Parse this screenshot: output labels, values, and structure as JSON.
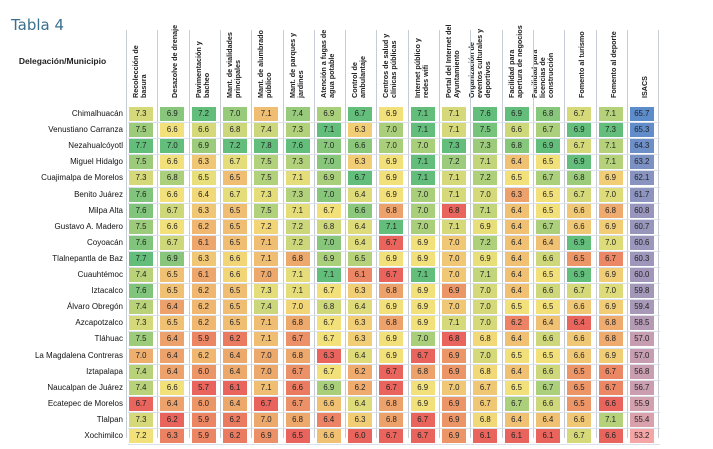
{
  "title": "Tabla 4",
  "header_label": "Delegación/Municipio",
  "columns": [
    "Recolección de basura",
    "Desazolve de drenaje",
    "Pavimentación y bacheo",
    "Mant. de vialidades principales",
    "Mant. de alumbrado público",
    "Mant. de parques y jardines",
    "Atención a fugas de agua potable",
    "Control de ambulantaje",
    "Centros de salud y clínicas públicas",
    "Internet público y redes wifi",
    "Portal del Internet del Ayuntamiento",
    "Organización de eventos culturales y deportivos",
    "Facilidad para apertura de negocios",
    "Facilidad para licencias de construcción",
    "Fomento al turismo",
    "Fomento al deporte",
    "ISACS"
  ],
  "rows": [
    {
      "name": "Chimalhuacán",
      "values": [
        "7.3",
        "6.9",
        "7.2",
        "7.0",
        "7.1",
        "7.4",
        "6.9",
        "6.7",
        "6.9",
        "7.1",
        "7.1",
        "7.6",
        "6.9",
        "6.8",
        "6.7",
        "7.1",
        "65.7"
      ]
    },
    {
      "name": "Venustiano Carranza",
      "values": [
        "7.5",
        "6.6",
        "6.6",
        "6.8",
        "7.4",
        "7.3",
        "7.1",
        "6.3",
        "7.0",
        "7.1",
        "7.1",
        "7.5",
        "6.6",
        "6.7",
        "6.9",
        "7.3",
        "65.3"
      ]
    },
    {
      "name": "Nezahualcóyotl",
      "values": [
        "7.7",
        "7.0",
        "6.9",
        "7.2",
        "7.8",
        "7.6",
        "7.0",
        "6.6",
        "7.0",
        "7.0",
        "7.3",
        "7.3",
        "6.8",
        "6.9",
        "6.7",
        "7.1",
        "64.3"
      ]
    },
    {
      "name": "Miguel Hidalgo",
      "values": [
        "7.5",
        "6.6",
        "6.3",
        "6.7",
        "7.5",
        "7.3",
        "7.0",
        "6.3",
        "6.9",
        "7.1",
        "7.2",
        "7.1",
        "6.4",
        "6.5",
        "6.9",
        "7.1",
        "63.2"
      ]
    },
    {
      "name": "Cuajimalpa de Morelos",
      "values": [
        "7.3",
        "6.8",
        "6.5",
        "6.5",
        "7.5",
        "7.1",
        "6.9",
        "6.7",
        "6.9",
        "7.1",
        "7.1",
        "7.2",
        "6.5",
        "6.7",
        "6.8",
        "6.9",
        "62.1"
      ]
    },
    {
      "name": "Benito Juárez",
      "values": [
        "7.6",
        "6.6",
        "6.4",
        "6.7",
        "7.3",
        "7.3",
        "7.0",
        "6.4",
        "6.9",
        "7.0",
        "7.1",
        "7.0",
        "6.3",
        "6.5",
        "6.7",
        "7.0",
        "61.7"
      ]
    },
    {
      "name": "Milpa Alta",
      "values": [
        "7.6",
        "6.7",
        "6.3",
        "6.5",
        "7.5",
        "7.1",
        "6.7",
        "6.6",
        "6.8",
        "7.0",
        "6.8",
        "7.1",
        "6.4",
        "6.5",
        "6.6",
        "6.8",
        "60.8"
      ]
    },
    {
      "name": "Gustavo A. Madero",
      "values": [
        "7.5",
        "6.6",
        "6.2",
        "6.5",
        "7.2",
        "7.2",
        "6.8",
        "6.4",
        "7.1",
        "7.0",
        "7.1",
        "6.9",
        "6.4",
        "6.7",
        "6.6",
        "6.9",
        "60.7"
      ]
    },
    {
      "name": "Coyoacán",
      "values": [
        "7.6",
        "6.7",
        "6.1",
        "6.5",
        "7.1",
        "7.2",
        "7.0",
        "6.4",
        "6.7",
        "6.9",
        "7.0",
        "7.2",
        "6.4",
        "6.4",
        "6.9",
        "7.0",
        "60.6"
      ]
    },
    {
      "name": "Tlalnepantla de Baz",
      "values": [
        "7.7",
        "6.9",
        "6.3",
        "6.6",
        "7.1",
        "6.8",
        "6.9",
        "6.5",
        "6.9",
        "6.9",
        "7.0",
        "6.9",
        "6.4",
        "6.6",
        "6.5",
        "6.7",
        "60.3"
      ]
    },
    {
      "name": "Cuauhtémoc",
      "values": [
        "7.4",
        "6.5",
        "6.1",
        "6.6",
        "7.0",
        "7.1",
        "7.1",
        "6.1",
        "6.7",
        "7.1",
        "7.0",
        "7.1",
        "6.4",
        "6.5",
        "6.9",
        "6.9",
        "60.0"
      ]
    },
    {
      "name": "Iztacalco",
      "values": [
        "7.6",
        "6.5",
        "6.2",
        "6.5",
        "7.3",
        "7.1",
        "6.7",
        "6.3",
        "6.8",
        "6.9",
        "6.9",
        "7.0",
        "6.4",
        "6.6",
        "6.7",
        "7.0",
        "59.8"
      ]
    },
    {
      "name": "Álvaro Obregón",
      "values": [
        "7.4",
        "6.4",
        "6.2",
        "6.5",
        "7.4",
        "7.0",
        "6.8",
        "6.4",
        "6.9",
        "6.9",
        "7.0",
        "7.0",
        "6.5",
        "6.5",
        "6.6",
        "6.9",
        "59.4"
      ]
    },
    {
      "name": "Azcapotzalco",
      "values": [
        "7.3",
        "6.5",
        "6.2",
        "6.5",
        "7.1",
        "6.8",
        "6.7",
        "6.3",
        "6.8",
        "6.9",
        "7.1",
        "7.0",
        "6.2",
        "6.4",
        "6.4",
        "6.8",
        "58.5"
      ]
    },
    {
      "name": "Tláhuac",
      "values": [
        "7.5",
        "6.4",
        "5.9",
        "6.2",
        "7.1",
        "6.7",
        "6.7",
        "6.3",
        "6.9",
        "7.0",
        "6.8",
        "6.8",
        "6.4",
        "6.6",
        "6.6",
        "6.8",
        "57.0"
      ]
    },
    {
      "name": "La Magdalena Contreras",
      "values": [
        "7.0",
        "6.4",
        "6.2",
        "6.4",
        "7.0",
        "6.8",
        "6.3",
        "6.4",
        "6.9",
        "6.7",
        "6.9",
        "7.0",
        "6.5",
        "6.5",
        "6.6",
        "6.9",
        "57.0"
      ]
    },
    {
      "name": "Iztapalapa",
      "values": [
        "7.4",
        "6.4",
        "6.0",
        "6.4",
        "7.0",
        "6.7",
        "6.7",
        "6.2",
        "6.7",
        "6.8",
        "6.9",
        "6.8",
        "6.4",
        "6.6",
        "6.5",
        "6.7",
        "56.8"
      ]
    },
    {
      "name": "Naucalpan de Juárez",
      "values": [
        "7.4",
        "6.6",
        "5.7",
        "6.1",
        "7.1",
        "6.6",
        "6.9",
        "6.2",
        "6.7",
        "6.9",
        "7.0",
        "6.7",
        "6.5",
        "6.7",
        "6.5",
        "6.7",
        "56.7"
      ]
    },
    {
      "name": "Ecatepec de Morelos",
      "values": [
        "6.7",
        "6.4",
        "6.0",
        "6.4",
        "6.7",
        "6.7",
        "6.6",
        "6.4",
        "6.8",
        "6.9",
        "6.9",
        "6.7",
        "6.7",
        "6.6",
        "6.5",
        "6.6",
        "55.9"
      ]
    },
    {
      "name": "Tlalpan",
      "values": [
        "7.3",
        "6.2",
        "5.9",
        "6.2",
        "7.0",
        "6.8",
        "6.4",
        "6.3",
        "6.8",
        "6.7",
        "6.9",
        "6.8",
        "6.4",
        "6.4",
        "6.6",
        "7.1",
        "55.4"
      ]
    },
    {
      "name": "Xochimilco",
      "values": [
        "7.2",
        "6.3",
        "5.9",
        "6.2",
        "6.9",
        "6.5",
        "6.6",
        "6.0",
        "6.7",
        "6.7",
        "6.9",
        "6.1",
        "6.1",
        "6.1",
        "6.7",
        "6.6",
        "53.2"
      ]
    }
  ],
  "colors": {
    "low": "#e8645c",
    "mid": "#f2e07a",
    "high": "#63be7b",
    "isacs_low": "#f4a5a5",
    "isacs_high": "#5d8ccb"
  }
}
